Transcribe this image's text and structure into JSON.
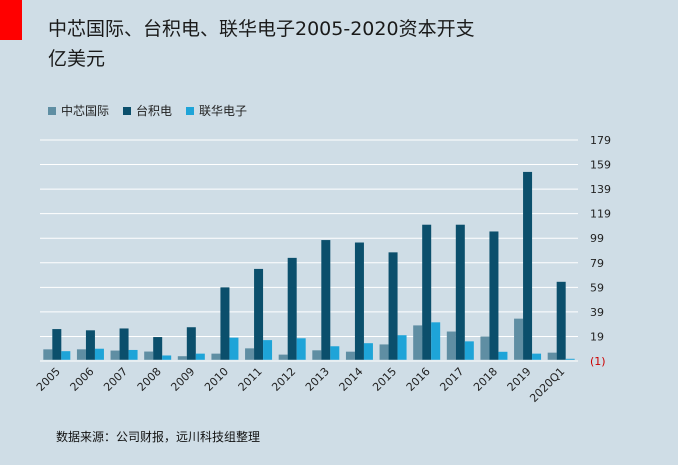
{
  "header": {
    "title_line1": "中芯国际、台积电、联华电子2005-2020资本开支",
    "title_line2": "亿美元"
  },
  "footer": {
    "source": "数据来源：公司财报，远川科技组整理"
  },
  "colors": {
    "accent": "#ff0000",
    "background": "#cfdde6",
    "smic": "#5f8ea3",
    "tsmc": "#0b4f6c",
    "umc": "#1ea4d8"
  },
  "chart_data": {
    "type": "bar",
    "title": "中芯国际、台积电、联华电子2005-2020资本开支",
    "ylabel": "",
    "xlabel": "",
    "ylim": [
      -1,
      179
    ],
    "yticks": [
      179,
      159,
      139,
      119,
      99,
      79,
      59,
      39,
      19,
      -1
    ],
    "ytick_labels": [
      "179",
      "159",
      "139",
      "119",
      "99",
      "79",
      "59",
      "39",
      "19",
      "(1)"
    ],
    "grid": true,
    "legend_position": "top-left",
    "categories": [
      "2005",
      "2006",
      "2007",
      "2008",
      "2009",
      "2010",
      "2011",
      "2012",
      "2013",
      "2014",
      "2015",
      "2016",
      "2017",
      "2018",
      "2019",
      "2020Q1"
    ],
    "series": [
      {
        "name": "中芯国际",
        "color": "#5f8ea3",
        "values": [
          8.5,
          8.5,
          7.5,
          6.7,
          2.9,
          5.0,
          9.3,
          4.2,
          7.7,
          6.6,
          12.5,
          28.0,
          23.0,
          19.0,
          33.5,
          5.8
        ]
      },
      {
        "name": "台积电",
        "color": "#0b4f6c",
        "values": [
          25.0,
          24.0,
          25.5,
          18.5,
          26.5,
          59.0,
          74.0,
          83.0,
          97.5,
          95.5,
          87.5,
          110.0,
          110.0,
          104.5,
          153.0,
          63.5
        ]
      },
      {
        "name": "联华电子",
        "color": "#1ea4d8",
        "values": [
          7.0,
          9.0,
          8.0,
          3.5,
          5.0,
          18.0,
          16.0,
          17.5,
          11.0,
          13.5,
          20.0,
          30.5,
          15.0,
          6.5,
          5.0,
          0.8
        ]
      }
    ]
  }
}
